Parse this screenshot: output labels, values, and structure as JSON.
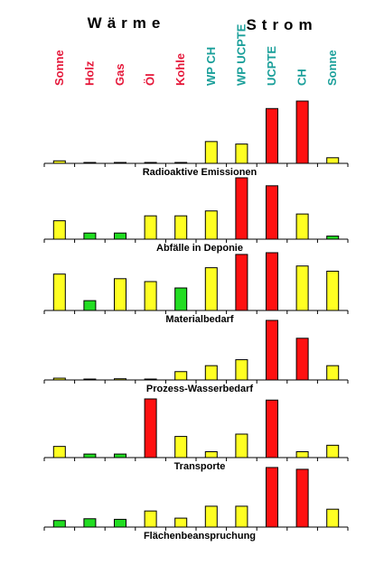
{
  "chart_data": {
    "type": "bar",
    "groups": [
      {
        "label": "Wärme",
        "color": "#e5183a"
      },
      {
        "label": "Strom",
        "color": "#1a9f9a"
      }
    ],
    "categories": [
      "Sonne",
      "Holz",
      "Gas",
      "Öl",
      "Kohle",
      "WP CH",
      "WP UCPTE",
      "UCPTE",
      "CH",
      "Sonne"
    ],
    "category_groups": [
      "Wärme",
      "Wärme",
      "Wärme",
      "Wärme",
      "Wärme",
      "Strom",
      "Strom",
      "Strom",
      "Strom",
      "Strom"
    ],
    "colors": {
      "Wärme": "#e5183a",
      "Strom": "#1a9f9a"
    },
    "level_colors": {
      "low": "#22dd22",
      "medium": "#ffff22",
      "high": "#ff1111"
    },
    "ylim": [
      0,
      100
    ],
    "panels": [
      {
        "title": "Radioaktive Emissionen",
        "values": [
          4,
          1,
          1,
          1,
          1,
          35,
          31,
          88,
          100,
          9
        ],
        "levels": [
          "medium",
          "medium",
          "medium",
          "medium",
          "medium",
          "medium",
          "medium",
          "high",
          "high",
          "medium"
        ]
      },
      {
        "title": "Abfälle in Deponie",
        "values": [
          30,
          10,
          10,
          38,
          38,
          46,
          100,
          87,
          41,
          5
        ],
        "levels": [
          "medium",
          "low",
          "low",
          "medium",
          "medium",
          "medium",
          "high",
          "high",
          "medium",
          "low"
        ]
      },
      {
        "title": "Materialbedarf",
        "values": [
          63,
          17,
          55,
          50,
          39,
          74,
          97,
          100,
          77,
          68
        ],
        "levels": [
          "medium",
          "low",
          "medium",
          "medium",
          "low",
          "medium",
          "high",
          "high",
          "medium",
          "medium"
        ]
      },
      {
        "title": "Prozess-Wasserbedarf",
        "values": [
          3,
          1,
          2,
          1,
          14,
          24,
          34,
          100,
          70,
          24
        ],
        "levels": [
          "medium",
          "medium",
          "medium",
          "medium",
          "medium",
          "medium",
          "medium",
          "high",
          "high",
          "medium"
        ]
      },
      {
        "title": "Transporte",
        "values": [
          19,
          6,
          6,
          100,
          36,
          10,
          40,
          98,
          10,
          21
        ],
        "levels": [
          "medium",
          "low",
          "low",
          "high",
          "medium",
          "medium",
          "medium",
          "high",
          "medium",
          "medium"
        ]
      },
      {
        "title": "Flächenbeanspruchung",
        "values": [
          11,
          14,
          13,
          27,
          15,
          35,
          35,
          100,
          97,
          30
        ],
        "levels": [
          "low",
          "low",
          "low",
          "medium",
          "medium",
          "medium",
          "medium",
          "high",
          "high",
          "medium"
        ]
      }
    ]
  }
}
